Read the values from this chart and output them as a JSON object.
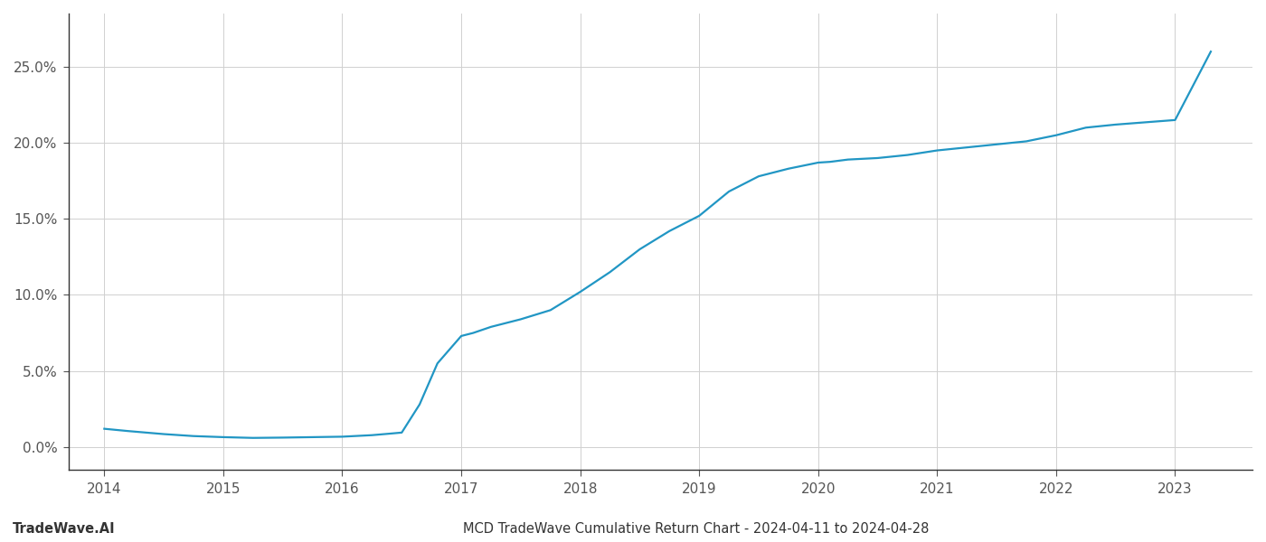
{
  "title": "MCD TradeWave Cumulative Return Chart - 2024-04-11 to 2024-04-28",
  "watermark": "TradeWave.AI",
  "line_color": "#2196c4",
  "background_color": "#ffffff",
  "grid_color": "#d0d0d0",
  "x_values": [
    2014.0,
    2014.2,
    2014.5,
    2014.75,
    2015.0,
    2015.25,
    2015.5,
    2015.75,
    2016.0,
    2016.1,
    2016.25,
    2016.4,
    2016.5,
    2016.65,
    2016.8,
    2017.0,
    2017.1,
    2017.25,
    2017.5,
    2017.75,
    2018.0,
    2018.25,
    2018.5,
    2018.75,
    2019.0,
    2019.25,
    2019.5,
    2019.75,
    2020.0,
    2020.1,
    2020.25,
    2020.5,
    2020.75,
    2021.0,
    2021.25,
    2021.5,
    2021.75,
    2022.0,
    2022.25,
    2022.5,
    2022.75,
    2023.0,
    2023.3
  ],
  "y_values": [
    1.2,
    1.05,
    0.85,
    0.72,
    0.65,
    0.6,
    0.62,
    0.65,
    0.68,
    0.72,
    0.78,
    0.88,
    0.95,
    2.8,
    5.5,
    7.3,
    7.5,
    7.9,
    8.4,
    9.0,
    10.2,
    11.5,
    13.0,
    14.2,
    15.2,
    16.8,
    17.8,
    18.3,
    18.7,
    18.75,
    18.9,
    19.0,
    19.2,
    19.5,
    19.7,
    19.9,
    20.1,
    20.5,
    21.0,
    21.2,
    21.35,
    21.5,
    26.0
  ],
  "xlim": [
    2013.7,
    2023.65
  ],
  "ylim": [
    -1.5,
    28.5
  ],
  "xticks": [
    2014,
    2015,
    2016,
    2017,
    2018,
    2019,
    2020,
    2021,
    2022,
    2023
  ],
  "yticks": [
    0.0,
    5.0,
    10.0,
    15.0,
    20.0,
    25.0
  ],
  "title_fontsize": 10.5,
  "watermark_fontsize": 10.5,
  "tick_fontsize": 11,
  "line_width": 1.6
}
